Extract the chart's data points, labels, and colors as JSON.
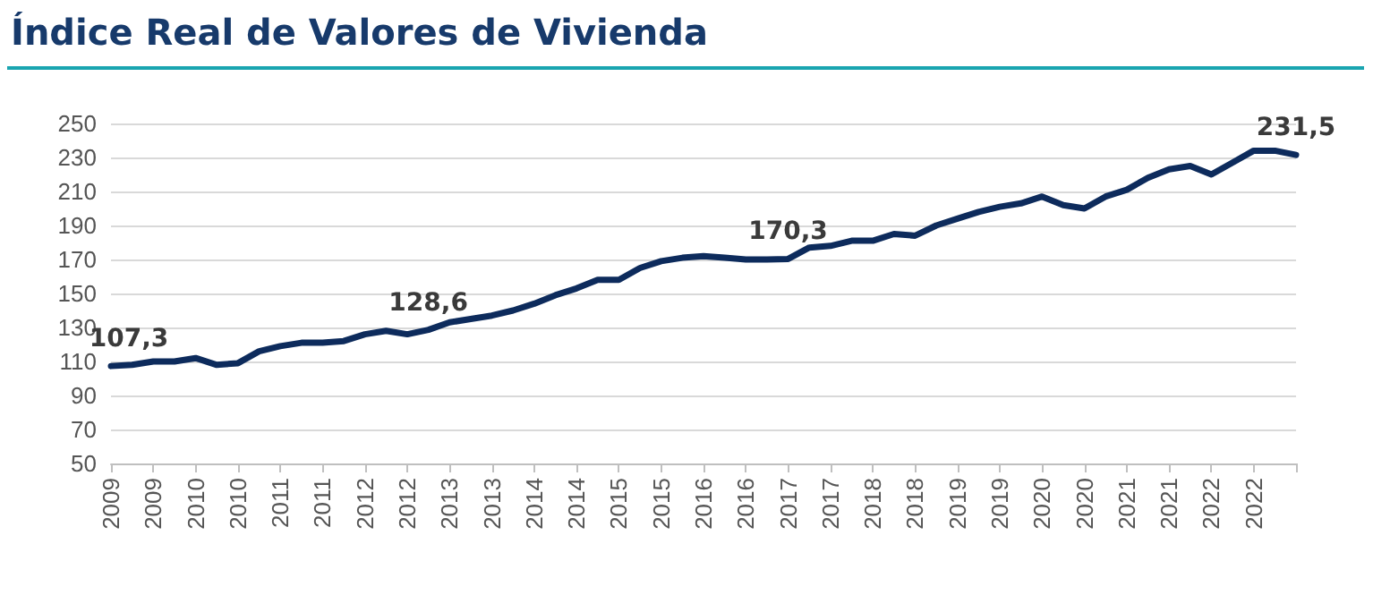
{
  "chart_data": {
    "type": "line",
    "title": "Índice Real de Valores de Vivienda",
    "categories": [
      "2009",
      null,
      "2009",
      null,
      "2010",
      null,
      "2010",
      null,
      "2011",
      null,
      "2011",
      null,
      "2012",
      null,
      "2012",
      null,
      "2013",
      null,
      "2013",
      null,
      "2014",
      null,
      "2014",
      null,
      "2015",
      null,
      "2015",
      null,
      "2016",
      null,
      "2016",
      null,
      "2017",
      null,
      "2017",
      null,
      "2018",
      null,
      "2018",
      null,
      "2019",
      null,
      "2019",
      null,
      "2020",
      null,
      "2020",
      null,
      "2021",
      null,
      "2021",
      null,
      "2022",
      null,
      "2022",
      null,
      null
    ],
    "series": [
      {
        "color": "#0d2b5c",
        "values": [
          107.3,
          108,
          110,
          110,
          112,
          108,
          109,
          116,
          119,
          121,
          121,
          122,
          126,
          128,
          126,
          128.6,
          133,
          135,
          137,
          140,
          144,
          149,
          153,
          158,
          158,
          165,
          169,
          171,
          172,
          171,
          170,
          170,
          170.3,
          177,
          178,
          181,
          181,
          185,
          184,
          190,
          194,
          198,
          201,
          203,
          207,
          202,
          200,
          207,
          211,
          218,
          223,
          225,
          220,
          227,
          234,
          234,
          231.5
        ],
        "value_labels": [
          "107,3",
          null,
          null,
          null,
          null,
          null,
          null,
          null,
          null,
          null,
          null,
          null,
          null,
          null,
          null,
          "128,6",
          null,
          null,
          null,
          null,
          null,
          null,
          null,
          null,
          null,
          null,
          null,
          null,
          null,
          null,
          null,
          null,
          "170,3",
          null,
          null,
          null,
          null,
          null,
          null,
          null,
          null,
          null,
          null,
          null,
          null,
          null,
          null,
          null,
          null,
          null,
          null,
          null,
          null,
          null,
          null,
          null,
          "231,5"
        ]
      }
    ],
    "ylim": [
      50,
      250
    ],
    "yticks": [
      50,
      70,
      90,
      110,
      130,
      150,
      170,
      190,
      210,
      230,
      250
    ],
    "grid": "y",
    "marker": "none",
    "line_style": "solid"
  }
}
